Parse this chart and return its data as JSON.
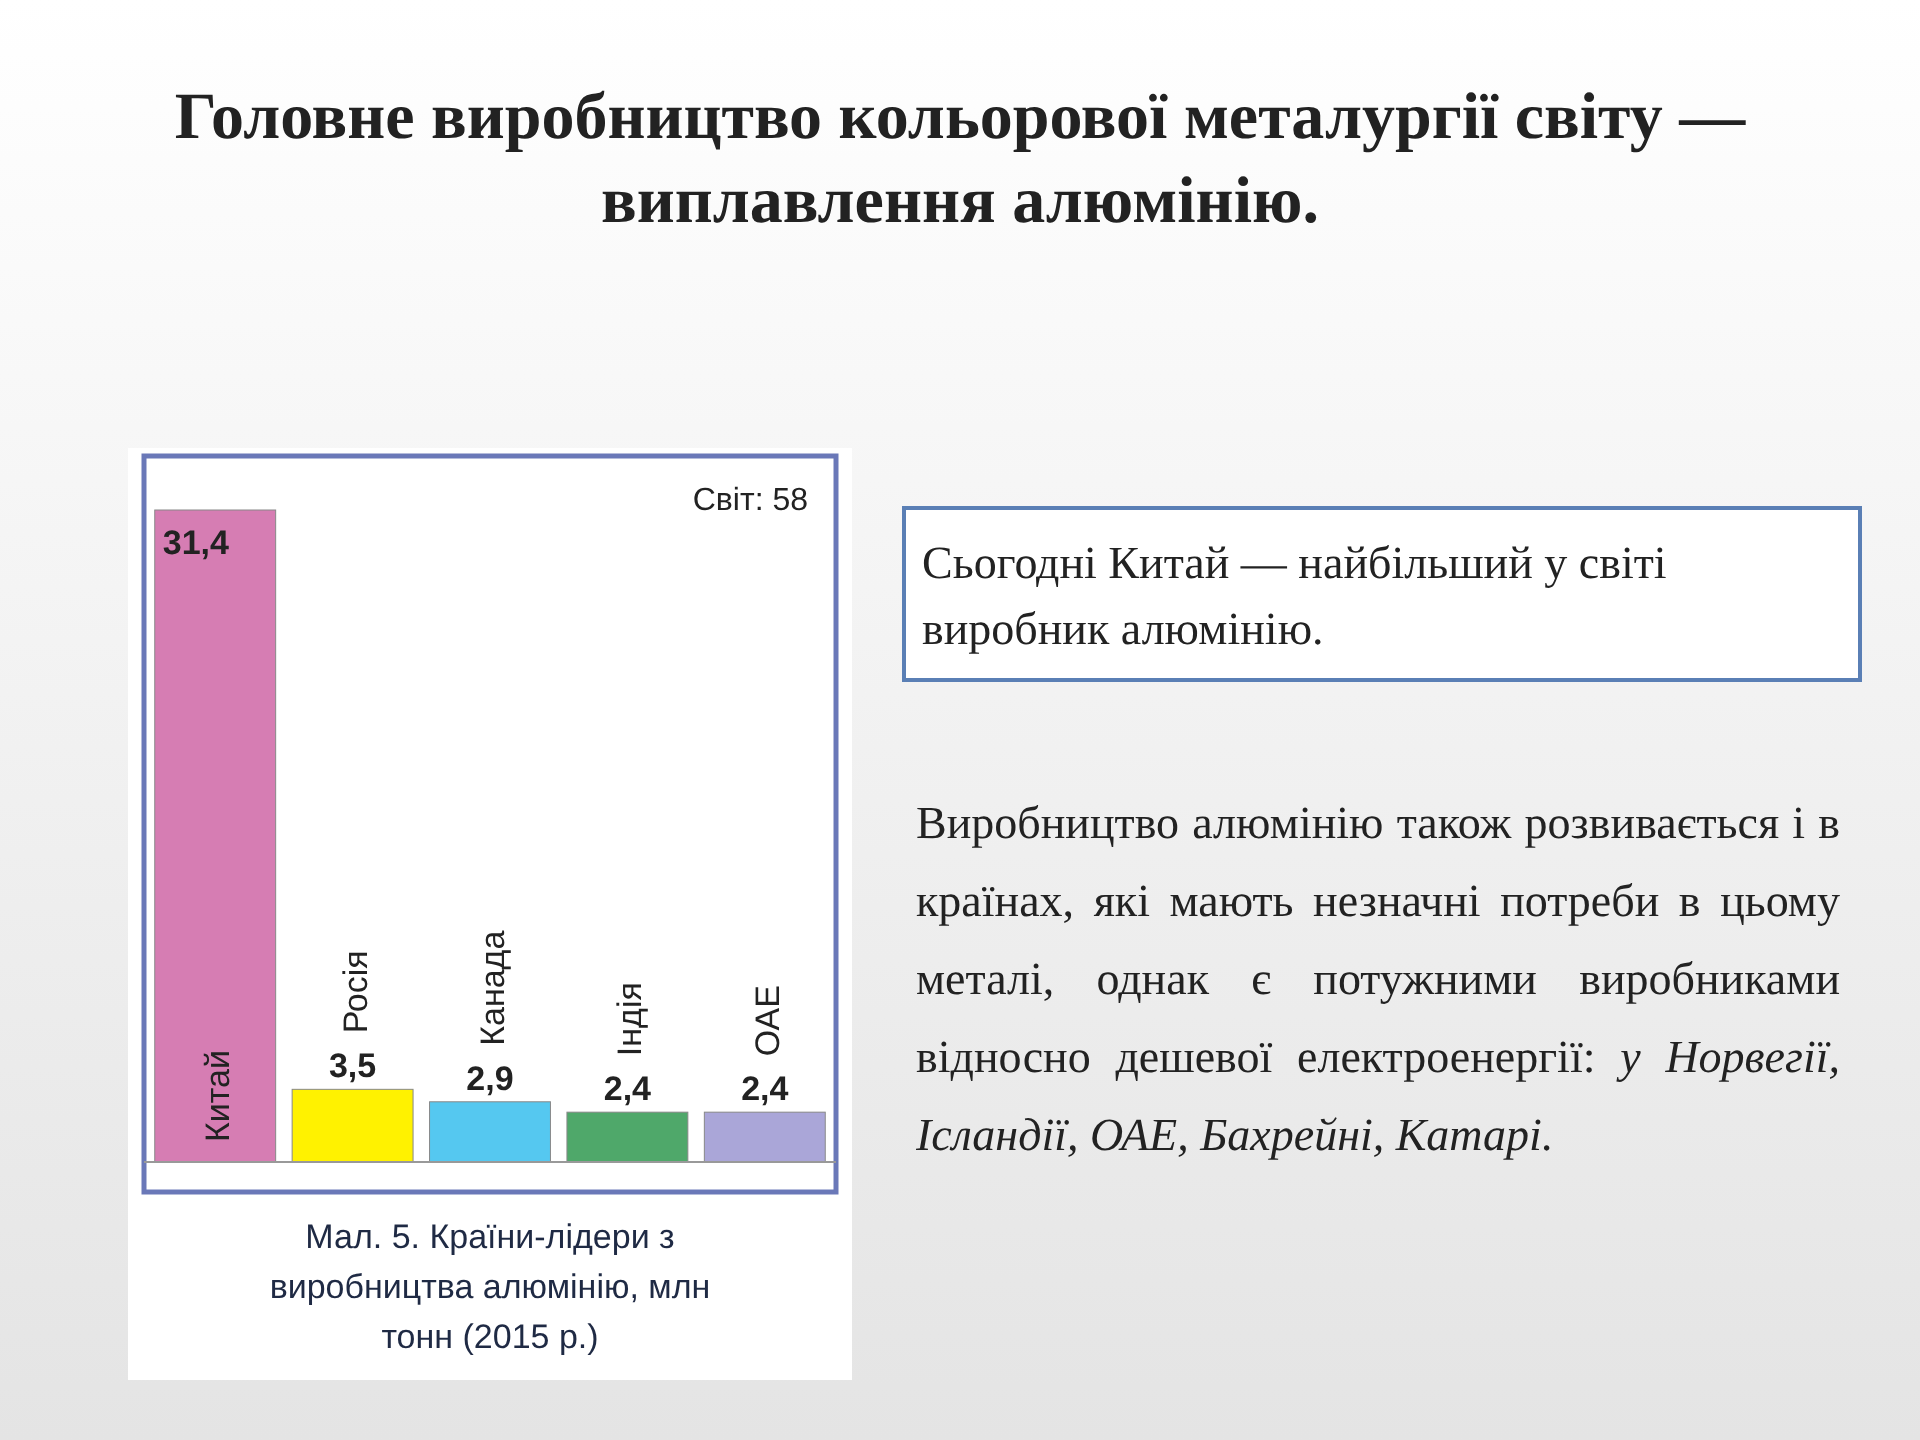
{
  "chart_data": {
    "type": "bar",
    "title": "Головне виробництво кольорової металургії світу — виплавлення алюмінію.",
    "categories": [
      "Китай",
      "Росія",
      "Канада",
      "Індія",
      "ОАЕ"
    ],
    "values": [
      31.4,
      3.5,
      2.9,
      2.4,
      2.4
    ],
    "value_labels": [
      "31,4",
      "3,5",
      "2,9",
      "2,4",
      "2,4"
    ],
    "colors": [
      "#d67db3",
      "#fff200",
      "#55c8f0",
      "#4fa86a",
      "#aaa6d8"
    ],
    "annotations": [
      "Світ: 58",
      "Мал. 5. Країни-лідери з виробництва алюмінію, млн тонн (2015 р.)",
      "Сьогодні Китай — найбільший у світі виробник алюмінію.",
      "Виробництво алюмінію також розвивається і в країнах, які мають незначні потреби в цьому металі, однак є потужними виробниками відносно дешевої електроенергії:",
      "у Норвегії, Ісландії, ОАЕ, Бахрейні, Катарі."
    ]
  }
}
